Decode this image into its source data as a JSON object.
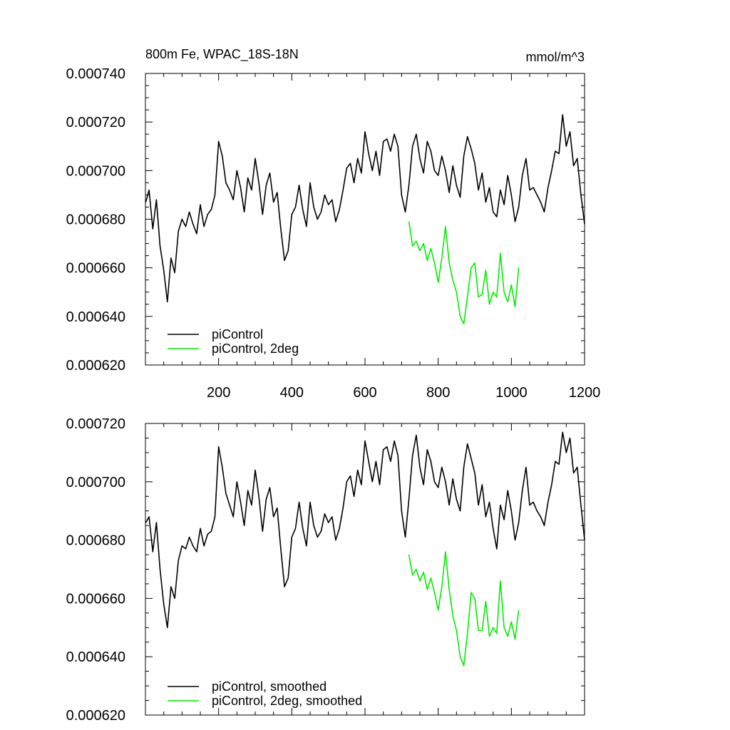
{
  "figure": {
    "title_left": "800m Fe, WPAC_18S-18N",
    "title_right": "mmol/m^3"
  },
  "chart_data": [
    {
      "type": "line",
      "title": "800m Fe, WPAC_18S-18N",
      "units": "mmol/m^3",
      "xlim": [
        0,
        1200
      ],
      "ylim": [
        0.00062,
        0.00074
      ],
      "x_ticks": [
        200,
        400,
        600,
        800,
        1000,
        1200
      ],
      "x_tick_labels": [
        "200",
        "400",
        "600",
        "800",
        "1000",
        "1200"
      ],
      "y_ticks": [
        0.00062,
        0.00064,
        0.00066,
        0.00068,
        0.0007,
        0.00072,
        0.00074
      ],
      "y_tick_labels": [
        "0.000620",
        "0.000640",
        "0.000660",
        "0.000680",
        "0.000700",
        "0.000720",
        "0.000740"
      ],
      "legend_position": "bottom-left",
      "series": [
        {
          "name": "piControl",
          "color": "#000000",
          "x": [
            1,
            10,
            20,
            30,
            40,
            50,
            60,
            70,
            80,
            90,
            100,
            110,
            120,
            130,
            140,
            150,
            160,
            170,
            180,
            190,
            200,
            210,
            220,
            230,
            240,
            250,
            260,
            270,
            280,
            290,
            300,
            310,
            320,
            330,
            340,
            350,
            360,
            370,
            380,
            390,
            400,
            410,
            420,
            430,
            440,
            450,
            460,
            470,
            480,
            490,
            500,
            510,
            520,
            530,
            540,
            550,
            560,
            570,
            580,
            590,
            600,
            610,
            620,
            630,
            640,
            650,
            660,
            670,
            680,
            690,
            700,
            710,
            720,
            730,
            740,
            750,
            760,
            770,
            780,
            790,
            800,
            810,
            820,
            830,
            840,
            850,
            860,
            870,
            880,
            890,
            900,
            910,
            920,
            930,
            940,
            950,
            960,
            970,
            980,
            990,
            1000,
            1010,
            1020,
            1030,
            1040,
            1050,
            1060,
            1070,
            1080,
            1090,
            1100,
            1110,
            1120,
            1130,
            1140,
            1150,
            1160,
            1170,
            1180,
            1190,
            1200
          ],
          "values": [
            0.000687,
            0.000692,
            0.000676,
            0.000688,
            0.000669,
            0.000659,
            0.000646,
            0.000664,
            0.000658,
            0.000675,
            0.00068,
            0.000677,
            0.000683,
            0.000678,
            0.000674,
            0.000686,
            0.000677,
            0.000682,
            0.000684,
            0.00069,
            0.000712,
            0.000706,
            0.000695,
            0.000692,
            0.000688,
            0.0007,
            0.000693,
            0.000683,
            0.000697,
            0.000692,
            0.000705,
            0.000695,
            0.000682,
            0.000694,
            0.000699,
            0.000687,
            0.000691,
            0.000676,
            0.000663,
            0.000667,
            0.000682,
            0.000685,
            0.000694,
            0.000684,
            0.000677,
            0.000695,
            0.000685,
            0.00068,
            0.000683,
            0.00069,
            0.000686,
            0.000688,
            0.000679,
            0.000684,
            0.000692,
            0.000701,
            0.000703,
            0.000695,
            0.000705,
            0.000699,
            0.000716,
            0.000707,
            0.0007,
            0.000708,
            0.000698,
            0.000712,
            0.000713,
            0.000708,
            0.000715,
            0.00071,
            0.00069,
            0.000683,
            0.000694,
            0.00071,
            0.000715,
            0.000705,
            0.000699,
            0.000712,
            0.000708,
            0.0007,
            0.000698,
            0.000706,
            0.0007,
            0.000691,
            0.000702,
            0.000694,
            0.000689,
            0.000706,
            0.000714,
            0.000709,
            0.000703,
            0.000692,
            0.000699,
            0.000687,
            0.000693,
            0.000683,
            0.000681,
            0.000692,
            0.000686,
            0.000698,
            0.00069,
            0.000679,
            0.000685,
            0.000698,
            0.000705,
            0.000692,
            0.000693,
            0.00069,
            0.000687,
            0.000683,
            0.000693,
            0.0007,
            0.000708,
            0.000707,
            0.000723,
            0.00071,
            0.000716,
            0.000702,
            0.000705,
            0.00069,
            0.000678
          ]
        },
        {
          "name": "piControl, 2deg",
          "color": "#00ee00",
          "x": [
            720,
            730,
            740,
            750,
            760,
            770,
            780,
            790,
            800,
            810,
            820,
            830,
            840,
            850,
            860,
            870,
            880,
            890,
            900,
            910,
            920,
            930,
            940,
            950,
            960,
            970,
            980,
            990,
            1000,
            1010,
            1020
          ],
          "values": [
            0.000679,
            0.000669,
            0.000671,
            0.000667,
            0.00067,
            0.000663,
            0.000668,
            0.000662,
            0.000654,
            0.000664,
            0.000677,
            0.000662,
            0.000655,
            0.00065,
            0.00064,
            0.000637,
            0.000648,
            0.00066,
            0.000662,
            0.000648,
            0.000649,
            0.000659,
            0.000645,
            0.00065,
            0.000648,
            0.000666,
            0.00065,
            0.000646,
            0.000653,
            0.000644,
            0.00066
          ]
        }
      ]
    },
    {
      "type": "line",
      "title": "",
      "xlim": [
        0,
        1200
      ],
      "ylim": [
        0.00062,
        0.00072
      ],
      "x_ticks": [
        200,
        400,
        600,
        800,
        1000,
        1200
      ],
      "y_ticks": [
        0.00062,
        0.00064,
        0.00066,
        0.00068,
        0.0007,
        0.00072
      ],
      "y_tick_labels": [
        "0.000620",
        "0.000640",
        "0.000660",
        "0.000680",
        "0.000700",
        "0.000720"
      ],
      "legend_position": "bottom-left",
      "series": [
        {
          "name": "piControl, smoothed",
          "color": "#000000",
          "x": [
            1,
            10,
            20,
            30,
            40,
            50,
            60,
            70,
            80,
            90,
            100,
            110,
            120,
            130,
            140,
            150,
            160,
            170,
            180,
            190,
            200,
            210,
            220,
            230,
            240,
            250,
            260,
            270,
            280,
            290,
            300,
            310,
            320,
            330,
            340,
            350,
            360,
            370,
            380,
            390,
            400,
            410,
            420,
            430,
            440,
            450,
            460,
            470,
            480,
            490,
            500,
            510,
            520,
            530,
            540,
            550,
            560,
            570,
            580,
            590,
            600,
            610,
            620,
            630,
            640,
            650,
            660,
            670,
            680,
            690,
            700,
            710,
            720,
            730,
            740,
            750,
            760,
            770,
            780,
            790,
            800,
            810,
            820,
            830,
            840,
            850,
            860,
            870,
            880,
            890,
            900,
            910,
            920,
            930,
            940,
            950,
            960,
            970,
            980,
            990,
            1000,
            1010,
            1020,
            1030,
            1040,
            1050,
            1060,
            1070,
            1080,
            1090,
            1100,
            1110,
            1120,
            1130,
            1140,
            1150,
            1160,
            1170,
            1180,
            1190,
            1200
          ],
          "values": [
            0.000686,
            0.000688,
            0.000676,
            0.000686,
            0.00067,
            0.000658,
            0.00065,
            0.000664,
            0.00066,
            0.000673,
            0.000678,
            0.000677,
            0.000681,
            0.000678,
            0.000676,
            0.000684,
            0.000678,
            0.000682,
            0.000683,
            0.000688,
            0.000712,
            0.000705,
            0.000696,
            0.000692,
            0.000688,
            0.0007,
            0.000693,
            0.000685,
            0.000697,
            0.000692,
            0.000704,
            0.000695,
            0.000683,
            0.000694,
            0.000698,
            0.000688,
            0.000691,
            0.000677,
            0.000664,
            0.000667,
            0.000681,
            0.000684,
            0.000693,
            0.000684,
            0.000678,
            0.000693,
            0.000685,
            0.000681,
            0.000683,
            0.000689,
            0.000686,
            0.000688,
            0.00068,
            0.000684,
            0.000691,
            0.0007,
            0.000702,
            0.000695,
            0.000704,
            0.000699,
            0.000714,
            0.000707,
            0.0007,
            0.000707,
            0.000699,
            0.000711,
            0.000712,
            0.000707,
            0.000714,
            0.000709,
            0.00069,
            0.000681,
            0.000694,
            0.000709,
            0.000716,
            0.000705,
            0.000699,
            0.000711,
            0.000707,
            0.0007,
            0.000698,
            0.000705,
            0.0007,
            0.000692,
            0.000701,
            0.000694,
            0.00069,
            0.000705,
            0.000713,
            0.000708,
            0.000703,
            0.000692,
            0.000699,
            0.000688,
            0.000693,
            0.000684,
            0.000677,
            0.000692,
            0.000687,
            0.000697,
            0.00069,
            0.00068,
            0.000686,
            0.000697,
            0.000705,
            0.000692,
            0.000693,
            0.00069,
            0.000688,
            0.000685,
            0.000693,
            0.000699,
            0.000707,
            0.000706,
            0.000717,
            0.00071,
            0.000715,
            0.000703,
            0.000705,
            0.000692,
            0.00068
          ]
        },
        {
          "name": "piControl, 2deg, smoothed",
          "color": "#00ee00",
          "x": [
            720,
            730,
            740,
            750,
            760,
            770,
            780,
            790,
            800,
            810,
            820,
            830,
            840,
            850,
            860,
            870,
            880,
            890,
            900,
            910,
            920,
            930,
            940,
            950,
            960,
            970,
            980,
            990,
            1000,
            1010,
            1020
          ],
          "values": [
            0.000675,
            0.000668,
            0.00067,
            0.000666,
            0.000669,
            0.000663,
            0.000667,
            0.000662,
            0.000656,
            0.000664,
            0.000676,
            0.000663,
            0.000654,
            0.000649,
            0.00064,
            0.000637,
            0.000648,
            0.000662,
            0.00066,
            0.000649,
            0.000649,
            0.000659,
            0.000647,
            0.00065,
            0.000648,
            0.000666,
            0.00065,
            0.000647,
            0.000652,
            0.000646,
            0.000656
          ]
        }
      ]
    }
  ]
}
